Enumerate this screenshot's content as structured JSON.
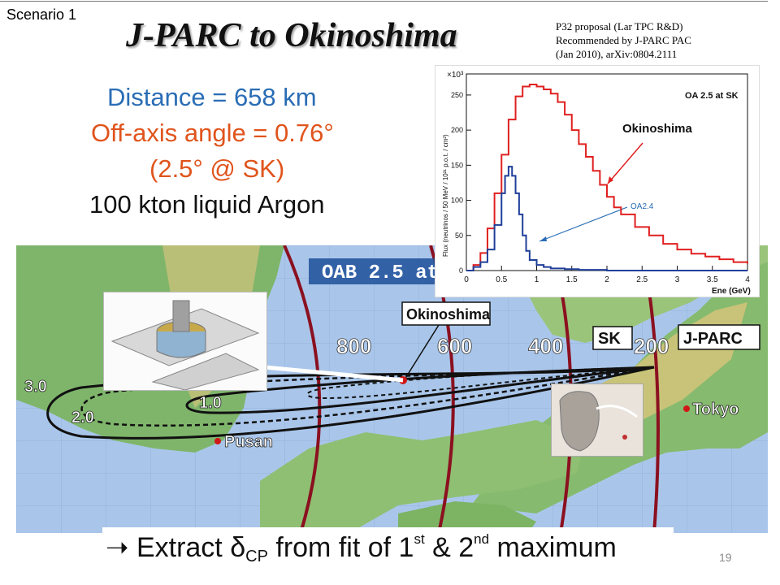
{
  "slide": {
    "scenario_label": "Scenario 1",
    "title": "J-PARC to Okinoshima",
    "reference_lines": [
      "P32 proposal (Lar TPC R&D)",
      "Recommended by J-PARC PAC",
      "(Jan 2010), arXiv:0804.2111"
    ],
    "stats": [
      {
        "text": "Distance = 658 km",
        "color": "#2a6db5"
      },
      {
        "text": "Off-axis angle = 0.76°",
        "color": "#e0541c"
      },
      {
        "text": "(2.5° @ SK)",
        "color": "#e0541c"
      },
      {
        "text": "100 kton liquid Argon",
        "color": "#111111"
      }
    ],
    "bottom_line": {
      "arrow": "➝",
      "part1": "Extract δ",
      "sub": "CP",
      "part2": " from fit of 1",
      "sup1": "st",
      "part3": " & 2",
      "sup2": "nd",
      "part4": " maximum"
    },
    "page_number": "19"
  },
  "map": {
    "banner": "OAB 2.5 at",
    "distance_labels": [
      "800",
      "600",
      "400",
      "200"
    ],
    "contour_labels": [
      "3.0",
      "2.0",
      "1.0"
    ],
    "places": [
      "Okinoshima",
      "SK",
      "J-PARC",
      "Tokyo",
      "Pusan"
    ]
  },
  "colors": {
    "blue": "#2a6db5",
    "orange": "#e0541c",
    "red": "#e02020",
    "navy": "#1f3f9a",
    "dark_red": "#8b1020"
  },
  "chart_data": {
    "type": "line",
    "xlabel": "Ene (GeV)",
    "ylabel": "Flux (neutrinos / 50 MeV / 10²¹ p.o.t. / cm²)",
    "y_multiplier": "×10³",
    "xlim": [
      0,
      4
    ],
    "ylim": [
      0,
      280
    ],
    "x_ticks": [
      "0",
      "0.5",
      "1",
      "1.5",
      "2",
      "2.5",
      "3",
      "3.5",
      "4"
    ],
    "y_ticks": [
      "0",
      "50",
      "100",
      "150",
      "200",
      "250"
    ],
    "annotations": [
      "OA 2.5 at SK",
      "Okinoshima",
      "OA2.4"
    ],
    "series": [
      {
        "name": "Okinoshima",
        "color": "#e02020",
        "x": [
          0.0,
          0.1,
          0.2,
          0.3,
          0.4,
          0.5,
          0.6,
          0.7,
          0.8,
          0.9,
          1.0,
          1.1,
          1.2,
          1.3,
          1.4,
          1.5,
          1.6,
          1.7,
          1.8,
          1.9,
          2.0,
          2.1,
          2.2,
          2.4,
          2.6,
          2.8,
          3.0,
          3.2,
          3.4,
          3.6,
          3.8,
          4.0
        ],
        "y": [
          0,
          8,
          25,
          60,
          110,
          165,
          215,
          248,
          262,
          265,
          262,
          258,
          252,
          240,
          222,
          200,
          180,
          162,
          142,
          122,
          105,
          90,
          80,
          62,
          50,
          38,
          30,
          24,
          20,
          16,
          12,
          10
        ]
      },
      {
        "name": "OA2.4",
        "color": "#1f3f9a",
        "x": [
          0.0,
          0.1,
          0.2,
          0.3,
          0.4,
          0.5,
          0.55,
          0.6,
          0.65,
          0.7,
          0.75,
          0.8,
          0.85,
          0.9,
          1.0,
          1.1,
          1.2,
          1.4,
          1.6,
          2.0,
          3.0,
          4.0
        ],
        "y": [
          0,
          5,
          12,
          30,
          65,
          110,
          135,
          148,
          135,
          110,
          80,
          50,
          28,
          15,
          8,
          5,
          3,
          2,
          1,
          0,
          0,
          0
        ]
      }
    ]
  }
}
